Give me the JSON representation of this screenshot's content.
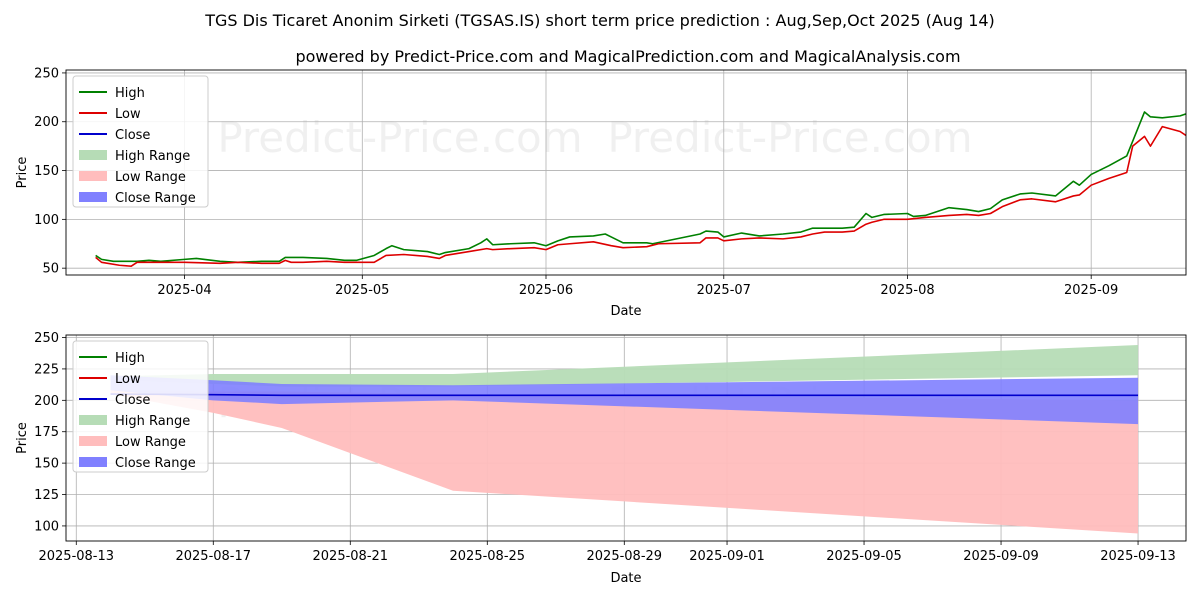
{
  "title": "TGS Dis Ticaret Anonim Sirketi (TGSAS.IS) short term price prediction : Aug,Sep,Oct 2025 (Aug 14)",
  "subtitle": "powered by Predict-Price.com and MagicalPrediction.com and MagicalAnalysis.com",
  "watermark": "Predict-Price.com",
  "colors": {
    "high": "#008000",
    "low": "#dd0000",
    "close": "#0000cc",
    "high_range": "#b6dcb6",
    "low_range": "#ffbdbd",
    "close_range": "#8080ff"
  },
  "chart_data": [
    {
      "type": "line",
      "panel": "history",
      "xlabel": "Date",
      "ylabel": "Price",
      "xlim": [
        "2025-03-12",
        "2025-09-17"
      ],
      "ylim": [
        43,
        253
      ],
      "yticks": [
        50,
        100,
        150,
        200,
        250
      ],
      "xticks": [
        {
          "date": "2025-04-01",
          "label": "2025-04"
        },
        {
          "date": "2025-05-01",
          "label": "2025-05"
        },
        {
          "date": "2025-06-01",
          "label": "2025-06"
        },
        {
          "date": "2025-07-01",
          "label": "2025-07"
        },
        {
          "date": "2025-08-01",
          "label": "2025-08"
        },
        {
          "date": "2025-09-01",
          "label": "2025-09"
        }
      ],
      "legend": [
        "High",
        "Low",
        "Close",
        "High Range",
        "Low Range",
        "Close Range"
      ],
      "legend_position": "top-left",
      "grid": true,
      "series": [
        {
          "name": "High",
          "points": [
            [
              "2025-03-17",
              63
            ],
            [
              "2025-03-18",
              59
            ],
            [
              "2025-03-20",
              57
            ],
            [
              "2025-03-24",
              57
            ],
            [
              "2025-03-26",
              58
            ],
            [
              "2025-03-28",
              57
            ],
            [
              "2025-04-01",
              59
            ],
            [
              "2025-04-03",
              60
            ],
            [
              "2025-04-07",
              57
            ],
            [
              "2025-04-10",
              56
            ],
            [
              "2025-04-14",
              57
            ],
            [
              "2025-04-17",
              57
            ],
            [
              "2025-04-18",
              61
            ],
            [
              "2025-04-21",
              61
            ],
            [
              "2025-04-25",
              60
            ],
            [
              "2025-04-28",
              58
            ],
            [
              "2025-04-30",
              58
            ],
            [
              "2025-05-03",
              63
            ],
            [
              "2025-05-05",
              70
            ],
            [
              "2025-05-06",
              73
            ],
            [
              "2025-05-08",
              69
            ],
            [
              "2025-05-12",
              67
            ],
            [
              "2025-05-14",
              64
            ],
            [
              "2025-05-15",
              66
            ],
            [
              "2025-05-19",
              70
            ],
            [
              "2025-05-21",
              76
            ],
            [
              "2025-05-22",
              80
            ],
            [
              "2025-05-23",
              74
            ],
            [
              "2025-05-26",
              75
            ],
            [
              "2025-05-30",
              76
            ],
            [
              "2025-06-01",
              73
            ],
            [
              "2025-06-03",
              78
            ],
            [
              "2025-06-05",
              82
            ],
            [
              "2025-06-09",
              83
            ],
            [
              "2025-06-11",
              85
            ],
            [
              "2025-06-12",
              82
            ],
            [
              "2025-06-14",
              76
            ],
            [
              "2025-06-18",
              76
            ],
            [
              "2025-06-19",
              75
            ],
            [
              "2025-06-23",
              80
            ],
            [
              "2025-06-27",
              85
            ],
            [
              "2025-06-28",
              88
            ],
            [
              "2025-06-30",
              87
            ],
            [
              "2025-07-01",
              82
            ],
            [
              "2025-07-04",
              86
            ],
            [
              "2025-07-07",
              83
            ],
            [
              "2025-07-11",
              85
            ],
            [
              "2025-07-14",
              87
            ],
            [
              "2025-07-16",
              91
            ],
            [
              "2025-07-18",
              91
            ],
            [
              "2025-07-21",
              91
            ],
            [
              "2025-07-23",
              92
            ],
            [
              "2025-07-25",
              106
            ],
            [
              "2025-07-26",
              102
            ],
            [
              "2025-07-28",
              105
            ],
            [
              "2025-08-01",
              106
            ],
            [
              "2025-08-02",
              103
            ],
            [
              "2025-08-04",
              104
            ],
            [
              "2025-08-08",
              112
            ],
            [
              "2025-08-11",
              110
            ],
            [
              "2025-08-13",
              108
            ],
            [
              "2025-08-15",
              111
            ],
            [
              "2025-08-17",
              120
            ],
            [
              "2025-08-20",
              126
            ],
            [
              "2025-08-22",
              127
            ],
            [
              "2025-08-26",
              124
            ],
            [
              "2025-08-29",
              139
            ],
            [
              "2025-08-30",
              135
            ],
            [
              "2025-09-01",
              146
            ],
            [
              "2025-09-04",
              155
            ],
            [
              "2025-09-07",
              165
            ],
            [
              "2025-09-10",
              210
            ],
            [
              "2025-09-11",
              205
            ],
            [
              "2025-09-13",
              204
            ],
            [
              "2025-09-16",
              206
            ],
            [
              "2025-09-17",
              208
            ],
            [
              "2025-09-19",
              221
            ],
            [
              "2025-09-20",
              220
            ]
          ]
        },
        {
          "name": "Low",
          "points": [
            [
              "2025-03-17",
              61
            ],
            [
              "2025-03-18",
              56
            ],
            [
              "2025-03-21",
              53
            ],
            [
              "2025-03-23",
              52
            ],
            [
              "2025-03-24",
              56
            ],
            [
              "2025-03-28",
              56
            ],
            [
              "2025-04-01",
              56
            ],
            [
              "2025-04-07",
              55
            ],
            [
              "2025-04-10",
              56
            ],
            [
              "2025-04-14",
              55
            ],
            [
              "2025-04-17",
              55
            ],
            [
              "2025-04-18",
              58
            ],
            [
              "2025-04-19",
              56
            ],
            [
              "2025-04-21",
              56
            ],
            [
              "2025-04-25",
              57
            ],
            [
              "2025-04-28",
              56
            ],
            [
              "2025-04-30",
              56
            ],
            [
              "2025-05-03",
              56
            ],
            [
              "2025-05-05",
              63
            ],
            [
              "2025-05-08",
              64
            ],
            [
              "2025-05-12",
              62
            ],
            [
              "2025-05-14",
              60
            ],
            [
              "2025-05-15",
              63
            ],
            [
              "2025-05-19",
              67
            ],
            [
              "2025-05-22",
              70
            ],
            [
              "2025-05-23",
              69
            ],
            [
              "2025-05-26",
              70
            ],
            [
              "2025-05-30",
              71
            ],
            [
              "2025-06-01",
              69
            ],
            [
              "2025-06-03",
              74
            ],
            [
              "2025-06-05",
              75
            ],
            [
              "2025-06-09",
              77
            ],
            [
              "2025-06-12",
              73
            ],
            [
              "2025-06-14",
              71
            ],
            [
              "2025-06-18",
              72
            ],
            [
              "2025-06-20",
              75
            ],
            [
              "2025-06-27",
              76
            ],
            [
              "2025-06-28",
              81
            ],
            [
              "2025-06-30",
              81
            ],
            [
              "2025-07-01",
              78
            ],
            [
              "2025-07-04",
              80
            ],
            [
              "2025-07-07",
              81
            ],
            [
              "2025-07-11",
              80
            ],
            [
              "2025-07-14",
              82
            ],
            [
              "2025-07-16",
              85
            ],
            [
              "2025-07-18",
              87
            ],
            [
              "2025-07-21",
              87
            ],
            [
              "2025-07-23",
              88
            ],
            [
              "2025-07-25",
              95
            ],
            [
              "2025-07-26",
              97
            ],
            [
              "2025-07-28",
              100
            ],
            [
              "2025-08-01",
              100
            ],
            [
              "2025-08-04",
              102
            ],
            [
              "2025-08-08",
              104
            ],
            [
              "2025-08-11",
              105
            ],
            [
              "2025-08-13",
              104
            ],
            [
              "2025-08-15",
              106
            ],
            [
              "2025-08-17",
              113
            ],
            [
              "2025-08-20",
              120
            ],
            [
              "2025-08-22",
              121
            ],
            [
              "2025-08-26",
              118
            ],
            [
              "2025-08-29",
              124
            ],
            [
              "2025-08-30",
              125
            ],
            [
              "2025-09-01",
              135
            ],
            [
              "2025-09-04",
              142
            ],
            [
              "2025-09-07",
              148
            ],
            [
              "2025-09-08",
              175
            ],
            [
              "2025-09-10",
              185
            ],
            [
              "2025-09-11",
              175
            ],
            [
              "2025-09-13",
              195
            ],
            [
              "2025-09-16",
              190
            ],
            [
              "2025-09-17",
              186
            ],
            [
              "2025-09-19",
              178
            ],
            [
              "2025-09-20",
              198
            ],
            [
              "2025-09-21",
              207
            ]
          ]
        },
        {
          "name": "Close",
          "points": []
        }
      ],
      "forecast": {
        "dates": [
          "2025-09-21",
          "2025-09-28",
          "2025-10-02",
          "2025-10-31"
        ],
        "high_range": {
          "upper": [
            221,
            221,
            221,
            244
          ],
          "lower": [
            216,
            211,
            211,
            220
          ]
        },
        "low_range": {
          "upper": [
            208,
            208,
            205,
            200
          ],
          "lower": [
            205,
            178,
            128,
            94
          ]
        },
        "close_range": {
          "upper": [
            220,
            213,
            212,
            218
          ],
          "lower": [
            208,
            197,
            200,
            181
          ]
        },
        "close": [
          205,
          204,
          204,
          204
        ]
      }
    },
    {
      "type": "line",
      "panel": "forecast-zoom",
      "xlabel": "Date",
      "ylabel": "Price",
      "xlim": [
        "2025-08-12.7",
        "2025-09-14.4"
      ],
      "ylim": [
        88,
        252
      ],
      "yticks": [
        100,
        125,
        150,
        175,
        200,
        225,
        250
      ],
      "xticks": [
        "2025-08-13",
        "2025-08-17",
        "2025-08-21",
        "2025-08-25",
        "2025-08-29",
        "2025-09-01",
        "2025-09-05",
        "2025-09-09",
        "2025-09-13"
      ],
      "legend": [
        "High",
        "Low",
        "Close",
        "High Range",
        "Low Range",
        "Close Range"
      ],
      "legend_position": "top-left",
      "grid": true,
      "forecast": {
        "dates": [
          "2025-08-14",
          "2025-08-17",
          "2025-08-19",
          "2025-08-24",
          "2025-09-13"
        ],
        "high_range": {
          "upper": [
            219,
            221,
            221,
            221,
            244
          ],
          "lower": [
            216,
            213,
            211,
            211,
            220
          ]
        },
        "low_range": {
          "upper": [
            208,
            207,
            207,
            205,
            200
          ],
          "lower": [
            205,
            190,
            178,
            128,
            94
          ]
        },
        "close_range": {
          "upper": [
            220,
            216,
            213,
            212,
            218
          ],
          "lower": [
            208,
            200,
            197,
            200,
            181
          ]
        },
        "close": [
          205,
          204.5,
          204,
          204,
          204
        ]
      }
    }
  ]
}
